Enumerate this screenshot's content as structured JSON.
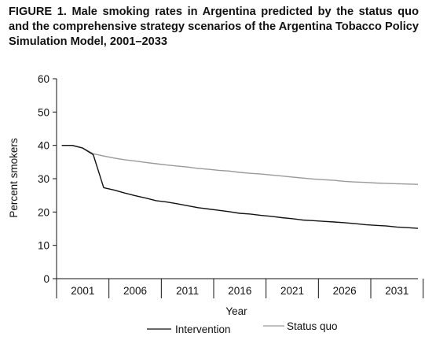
{
  "chart_data": {
    "type": "line",
    "title": "FIGURE 1. Male smoking rates in Argentina predicted by the status quo and the comprehensive strategy scenarios of the Argentina Tobacco Policy Simulation Model, 2001–2033",
    "xlabel": "Year",
    "ylabel": "Percent smokers",
    "xlim": [
      1998.5,
      2033
    ],
    "ylim": [
      0,
      60
    ],
    "x_ticks": [
      2001,
      2006,
      2011,
      2016,
      2021,
      2026,
      2031
    ],
    "y_ticks": [
      0,
      10,
      20,
      30,
      40,
      50,
      60
    ],
    "grid": false,
    "legend_position": "bottom",
    "x": [
      1999,
      2000,
      2001,
      2002,
      2003,
      2004,
      2005,
      2006,
      2007,
      2008,
      2009,
      2010,
      2011,
      2012,
      2013,
      2014,
      2015,
      2016,
      2017,
      2018,
      2019,
      2020,
      2021,
      2022,
      2023,
      2024,
      2025,
      2026,
      2027,
      2028,
      2029,
      2030,
      2031,
      2032,
      2033
    ],
    "series": [
      {
        "name": "Intervention",
        "color": "#111111",
        "values": [
          40.0,
          40.0,
          39.2,
          37.2,
          27.3,
          26.6,
          25.7,
          24.9,
          24.2,
          23.4,
          23.0,
          22.5,
          21.9,
          21.3,
          20.9,
          20.5,
          20.1,
          19.6,
          19.4,
          19.0,
          18.7,
          18.3,
          18.0,
          17.6,
          17.4,
          17.2,
          17.0,
          16.8,
          16.5,
          16.2,
          16.0,
          15.8,
          15.5,
          15.3,
          15.1
        ]
      },
      {
        "name": "Status quo",
        "color": "#9a9a9a",
        "values": [
          40.0,
          40.0,
          39.2,
          37.5,
          36.8,
          36.2,
          35.7,
          35.3,
          34.9,
          34.5,
          34.1,
          33.8,
          33.5,
          33.1,
          32.8,
          32.5,
          32.3,
          31.9,
          31.6,
          31.4,
          31.1,
          30.8,
          30.5,
          30.2,
          29.9,
          29.7,
          29.5,
          29.2,
          29.0,
          28.9,
          28.7,
          28.6,
          28.5,
          28.4,
          28.3
        ]
      }
    ]
  }
}
